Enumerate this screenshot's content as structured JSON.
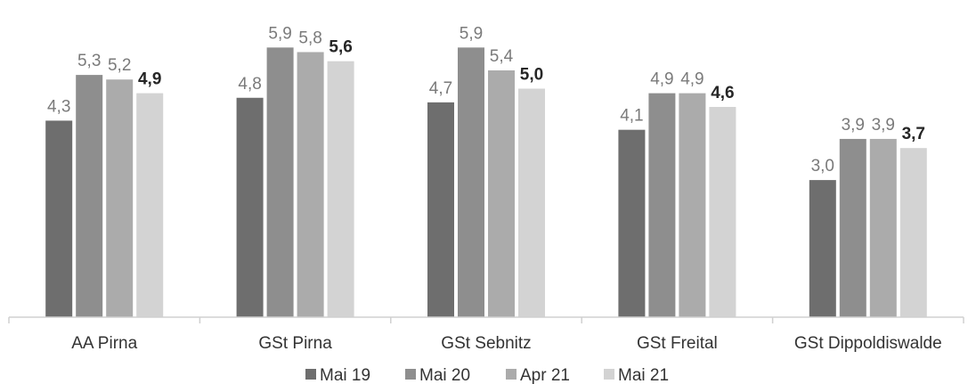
{
  "chart_data": {
    "type": "bar",
    "title": "",
    "xlabel": "",
    "ylabel": "",
    "ylim": [
      0,
      6.5
    ],
    "grid": false,
    "legend_position": "bottom",
    "categories": [
      "AA Pirna",
      "GSt Pirna",
      "GSt Sebnitz",
      "GSt Freital",
      "GSt Dippoldiswalde"
    ],
    "series": [
      {
        "name": "Mai 19",
        "color": "#6e6e6e",
        "label_color": "#7a7a7a",
        "label_bold": false,
        "values": [
          4.3,
          4.8,
          4.7,
          4.1,
          3.0
        ],
        "labels": [
          "4,3",
          "4,8",
          "4,7",
          "4,1",
          "3,0"
        ]
      },
      {
        "name": "Mai 20",
        "color": "#8e8e8e",
        "label_color": "#7a7a7a",
        "label_bold": false,
        "values": [
          5.3,
          5.9,
          5.9,
          4.9,
          3.9
        ],
        "labels": [
          "5,3",
          "5,9",
          "5,9",
          "4,9",
          "3,9"
        ]
      },
      {
        "name": "Apr 21",
        "color": "#ababab",
        "label_color": "#7a7a7a",
        "label_bold": false,
        "values": [
          5.2,
          5.8,
          5.4,
          4.9,
          3.9
        ],
        "labels": [
          "5,2",
          "5,8",
          "5,4",
          "4,9",
          "3,9"
        ]
      },
      {
        "name": "Mai 21",
        "color": "#d3d3d3",
        "label_color": "#262626",
        "label_bold": true,
        "values": [
          4.9,
          5.6,
          5.0,
          4.6,
          3.7
        ],
        "labels": [
          "4,9",
          "5,6",
          "5,0",
          "4,6",
          "3,7"
        ]
      }
    ]
  }
}
